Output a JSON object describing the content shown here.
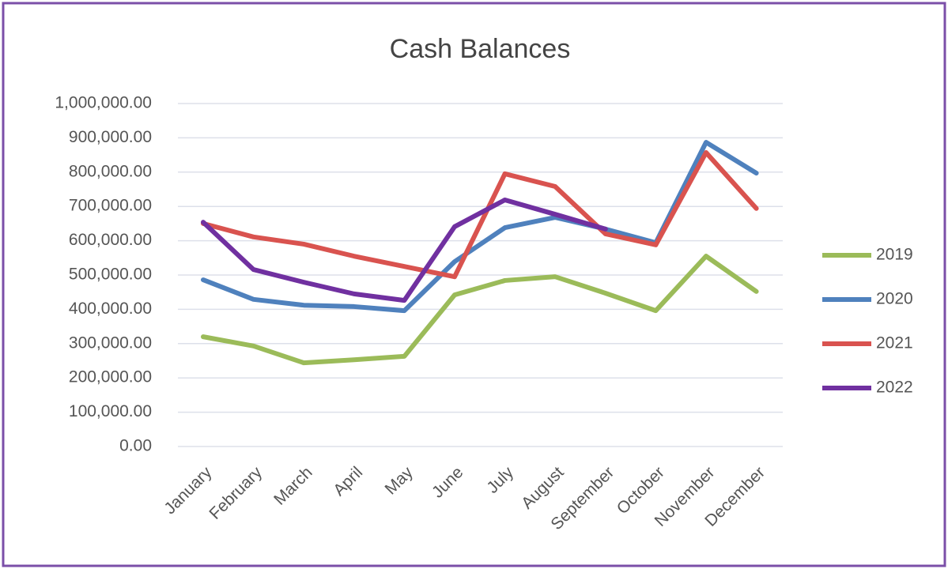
{
  "chart_data": {
    "type": "line",
    "title": "Cash Balances",
    "categories": [
      "January",
      "February",
      "March",
      "April",
      "May",
      "June",
      "July",
      "August",
      "September",
      "October",
      "November",
      "December"
    ],
    "series": [
      {
        "name": "2019",
        "color": "#9bbb59",
        "values": [
          320000,
          293000,
          244000,
          253000,
          263000,
          442000,
          484000,
          495000,
          447000,
          396000,
          555000,
          452000
        ]
      },
      {
        "name": "2020",
        "color": "#4f81bd",
        "values": [
          486000,
          429000,
          412000,
          408000,
          396000,
          539000,
          638000,
          668000,
          634000,
          594000,
          887000,
          797000
        ]
      },
      {
        "name": "2021",
        "color": "#d9534f",
        "values": [
          650000,
          611000,
          590000,
          555000,
          525000,
          495000,
          795000,
          758000,
          620000,
          588000,
          857000,
          694000
        ]
      },
      {
        "name": "2022",
        "color": "#7030a0",
        "values": [
          654000,
          516000,
          479000,
          445000,
          426000,
          641000,
          719000,
          677000,
          634000,
          null,
          null,
          null
        ]
      }
    ],
    "ylim": [
      0,
      1000000
    ],
    "yticks": [
      {
        "value": 0,
        "label": "0.00"
      },
      {
        "value": 100000,
        "label": "100,000.00"
      },
      {
        "value": 200000,
        "label": "200,000.00"
      },
      {
        "value": 300000,
        "label": "300,000.00"
      },
      {
        "value": 400000,
        "label": "400,000.00"
      },
      {
        "value": 500000,
        "label": "500,000.00"
      },
      {
        "value": 600000,
        "label": "600,000.00"
      },
      {
        "value": 700000,
        "label": "700,000.00"
      },
      {
        "value": 800000,
        "label": "800,000.00"
      },
      {
        "value": 900000,
        "label": "900,000.00"
      },
      {
        "value": 1000000,
        "label": "1,000,000.00"
      }
    ],
    "grid": true,
    "legend": "right"
  }
}
